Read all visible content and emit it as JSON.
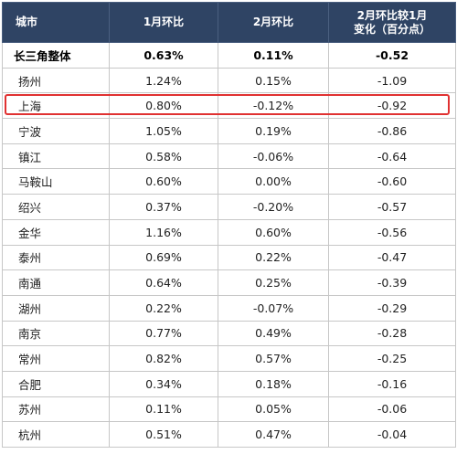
{
  "table": {
    "headers": [
      "城市",
      "1月环比",
      "2月环比",
      "2月环比较1月变化（百分点）"
    ],
    "header_line1": "2月环比较1月",
    "header_line2": "变化（百分点）",
    "highlight_row": "上海",
    "highlight_color": "#e03131",
    "header_bg": "#2f4464",
    "rows": [
      {
        "city": "长三角整体",
        "jan": "0.63%",
        "feb": "0.11%",
        "change": "-0.52"
      },
      {
        "city": "扬州",
        "jan": "1.24%",
        "feb": "0.15%",
        "change": "-1.09"
      },
      {
        "city": "上海",
        "jan": "0.80%",
        "feb": "-0.12%",
        "change": "-0.92"
      },
      {
        "city": "宁波",
        "jan": "1.05%",
        "feb": "0.19%",
        "change": "-0.86"
      },
      {
        "city": "镇江",
        "jan": "0.58%",
        "feb": "-0.06%",
        "change": "-0.64"
      },
      {
        "city": "马鞍山",
        "jan": "0.60%",
        "feb": "0.00%",
        "change": "-0.60"
      },
      {
        "city": "绍兴",
        "jan": "0.37%",
        "feb": "-0.20%",
        "change": "-0.57"
      },
      {
        "city": "金华",
        "jan": "1.16%",
        "feb": "0.60%",
        "change": "-0.56"
      },
      {
        "city": "泰州",
        "jan": "0.69%",
        "feb": "0.22%",
        "change": "-0.47"
      },
      {
        "city": "南通",
        "jan": "0.64%",
        "feb": "0.25%",
        "change": "-0.39"
      },
      {
        "city": "湖州",
        "jan": "0.22%",
        "feb": "-0.07%",
        "change": "-0.29"
      },
      {
        "city": "南京",
        "jan": "0.77%",
        "feb": "0.49%",
        "change": "-0.28"
      },
      {
        "city": "常州",
        "jan": "0.82%",
        "feb": "0.57%",
        "change": "-0.25"
      },
      {
        "city": "合肥",
        "jan": "0.34%",
        "feb": "0.18%",
        "change": "-0.16"
      },
      {
        "city": "苏州",
        "jan": "0.11%",
        "feb": "0.05%",
        "change": "-0.06"
      },
      {
        "city": "杭州",
        "jan": "0.51%",
        "feb": "0.47%",
        "change": "-0.04"
      }
    ]
  }
}
